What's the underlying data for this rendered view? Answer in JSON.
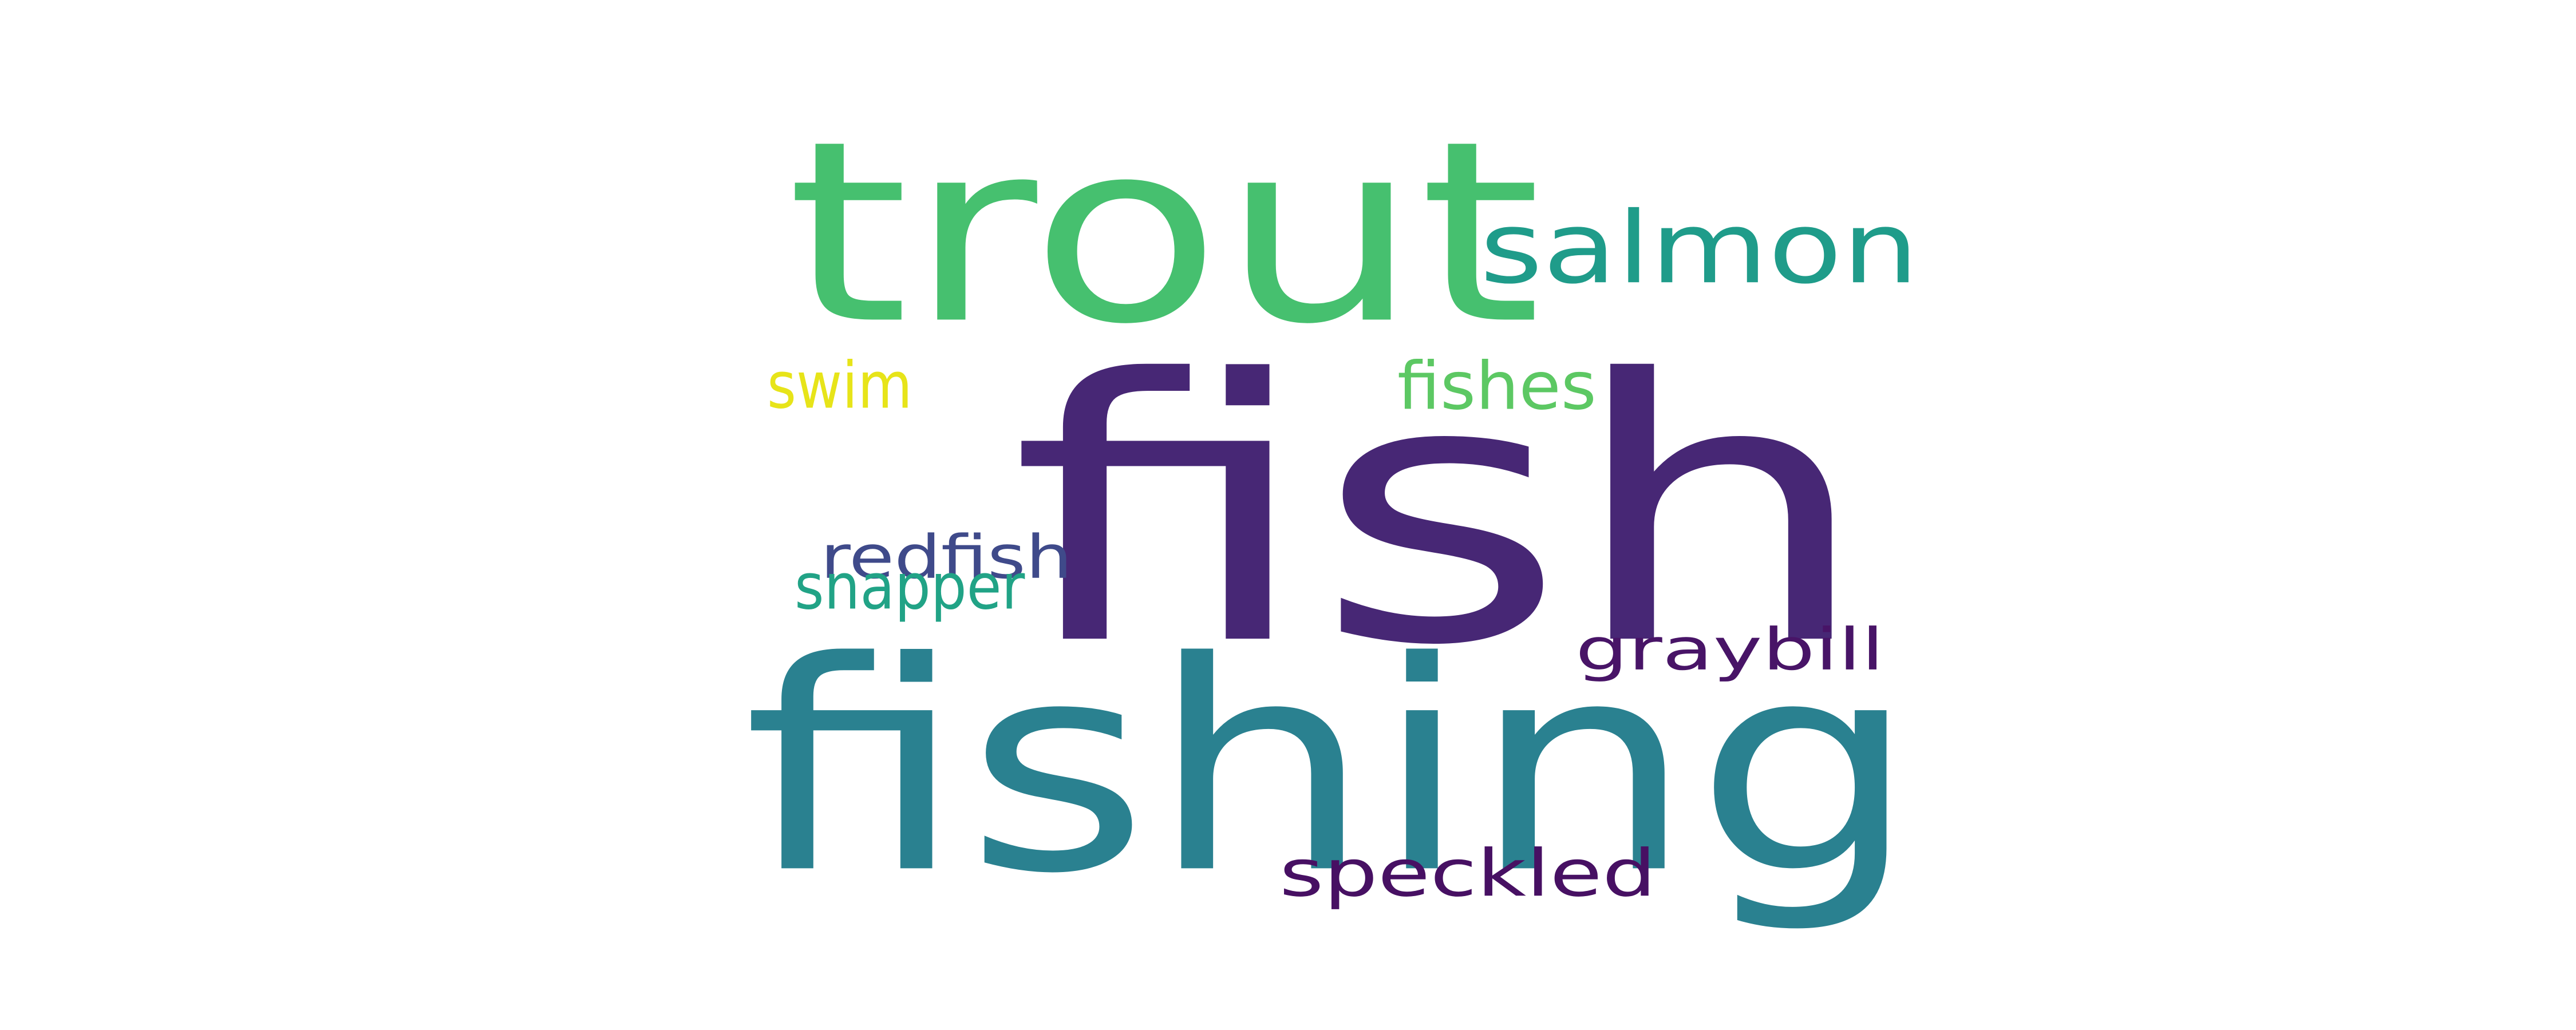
{
  "word_cloud": {
    "background_color": "#ffffff",
    "words": [
      {
        "id": "fish",
        "text": "fish",
        "color": "#472775"
      },
      {
        "id": "fishing",
        "text": "fishing",
        "color": "#2a8190"
      },
      {
        "id": "trout",
        "text": "trout",
        "color": "#46c06f"
      },
      {
        "id": "salmon",
        "text": "salmon",
        "color": "#1f9c8a"
      },
      {
        "id": "swim",
        "text": "swim",
        "color": "#e7e419"
      },
      {
        "id": "fishes",
        "text": "fishes",
        "color": "#5cc863"
      },
      {
        "id": "redfish",
        "text": "redfish",
        "color": "#3f4a8a"
      },
      {
        "id": "snapper",
        "text": "snapper",
        "color": "#21a386"
      },
      {
        "id": "graybill",
        "text": "graybill",
        "color": "#481467"
      },
      {
        "id": "speckled",
        "text": "speckled",
        "color": "#471063"
      }
    ]
  }
}
